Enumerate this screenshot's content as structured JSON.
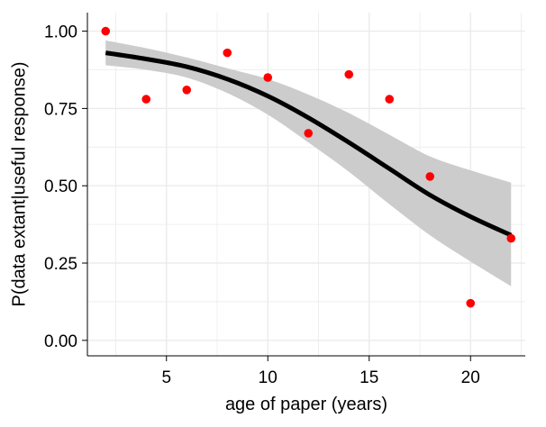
{
  "chart_data": {
    "type": "scatter",
    "xlabel": "age of paper (years)",
    "ylabel": "P(data extant|useful response)",
    "xlim": [
      1.1,
      22.7
    ],
    "ylim": [
      -0.05,
      1.06
    ],
    "x_ticks": [
      5,
      10,
      15,
      20
    ],
    "x_tick_labels": [
      "5",
      "10",
      "15",
      "20"
    ],
    "y_ticks": [
      0,
      0.25,
      0.5,
      0.75,
      1.0
    ],
    "y_tick_labels": [
      "0.00",
      "0.25",
      "0.50",
      "0.75",
      "1.00"
    ],
    "grid": true,
    "points": [
      {
        "x": 2,
        "y": 1.0
      },
      {
        "x": 4,
        "y": 0.78
      },
      {
        "x": 6,
        "y": 0.81
      },
      {
        "x": 8,
        "y": 0.93
      },
      {
        "x": 10,
        "y": 0.85
      },
      {
        "x": 12,
        "y": 0.67
      },
      {
        "x": 14,
        "y": 0.86
      },
      {
        "x": 16,
        "y": 0.78
      },
      {
        "x": 18,
        "y": 0.53
      },
      {
        "x": 20,
        "y": 0.12
      },
      {
        "x": 22,
        "y": 0.33
      }
    ],
    "fit": {
      "x": [
        2,
        4,
        6,
        8,
        10,
        12,
        14,
        16,
        18,
        20,
        22
      ],
      "y": [
        0.93,
        0.91,
        0.885,
        0.845,
        0.79,
        0.72,
        0.64,
        0.555,
        0.47,
        0.4,
        0.34
      ],
      "lower": [
        0.89,
        0.875,
        0.85,
        0.8,
        0.73,
        0.64,
        0.545,
        0.44,
        0.34,
        0.255,
        0.175
      ],
      "upper": [
        0.97,
        0.945,
        0.915,
        0.88,
        0.845,
        0.795,
        0.735,
        0.665,
        0.595,
        0.55,
        0.51
      ]
    },
    "colors": {
      "points": "#ff0000",
      "fit_line": "#000000",
      "ribbon": "#cccccc",
      "grid": "#ebebeb",
      "axis": "#000000"
    }
  }
}
